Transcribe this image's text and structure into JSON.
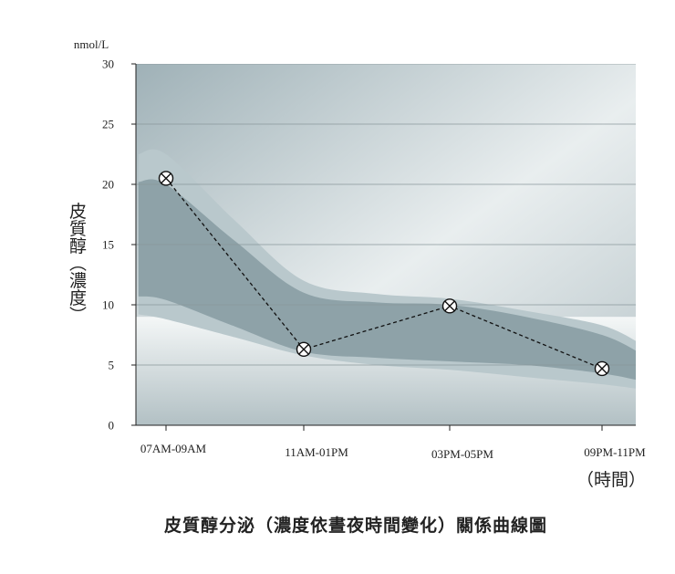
{
  "chart_data": {
    "type": "line",
    "title": "皮質醇分泌（濃度依晝夜時間變化）關係曲線圖",
    "ylabel": "皮質醇（濃度）",
    "yunit": "nmol/L",
    "xlabel": "（時間）",
    "ylim": [
      0,
      30
    ],
    "yticks": [
      0,
      5,
      10,
      15,
      20,
      25,
      30
    ],
    "grid": true,
    "categories": [
      "07AM-09AM",
      "11AM-01PM",
      "03PM-05PM",
      "09PM-11PM"
    ],
    "series": [
      {
        "values": [
          20.5,
          6.3,
          9.9,
          4.7
        ],
        "style": "dashed",
        "marker": "circle-x",
        "color": "#111111"
      }
    ],
    "bands": [
      {
        "color": "#b9c8cc",
        "upper": [
          [
            -0.2,
            22.5
          ],
          [
            0.0,
            22.5
          ],
          [
            0.5,
            17.0
          ],
          [
            1.0,
            12.0
          ],
          [
            1.5,
            10.9
          ],
          [
            2.0,
            10.5
          ],
          [
            2.5,
            9.5
          ],
          [
            3.0,
            8.3
          ],
          [
            3.25,
            6.8
          ]
        ],
        "lower": [
          [
            -0.2,
            9.2
          ],
          [
            0.0,
            8.8
          ],
          [
            0.5,
            7.3
          ],
          [
            1.0,
            5.8
          ],
          [
            1.5,
            5.0
          ],
          [
            2.0,
            4.6
          ],
          [
            2.5,
            4.0
          ],
          [
            3.0,
            3.4
          ],
          [
            3.25,
            3.0
          ]
        ]
      },
      {
        "color": "#8ea2a8",
        "upper": [
          [
            -0.2,
            20.2
          ],
          [
            0.0,
            20.0
          ],
          [
            0.5,
            15.3
          ],
          [
            1.0,
            11.0
          ],
          [
            1.5,
            10.2
          ],
          [
            2.0,
            10.0
          ],
          [
            2.5,
            9.0
          ],
          [
            3.0,
            7.5
          ],
          [
            3.25,
            6.0
          ]
        ],
        "lower": [
          [
            -0.2,
            10.7
          ],
          [
            0.0,
            10.4
          ],
          [
            0.5,
            8.2
          ],
          [
            1.0,
            6.1
          ],
          [
            1.5,
            5.6
          ],
          [
            2.0,
            5.3
          ],
          [
            2.5,
            5.0
          ],
          [
            3.0,
            4.3
          ],
          [
            3.25,
            3.7
          ]
        ]
      }
    ],
    "colors": {
      "background": "#aebec3",
      "grid": "#8a979b",
      "axis": "#222222"
    }
  }
}
